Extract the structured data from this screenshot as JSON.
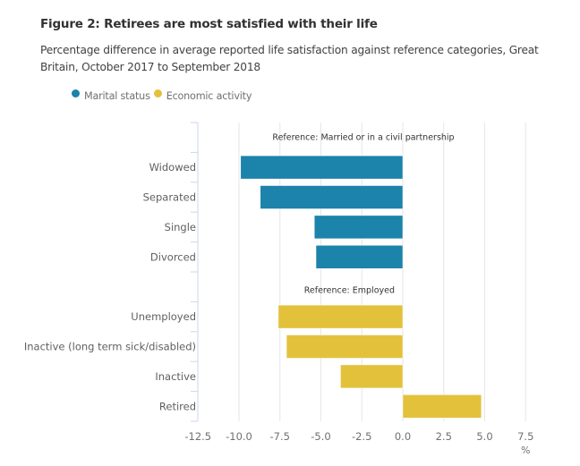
{
  "figure": {
    "title": "Figure 2: Retirees are most satisfied with their life",
    "subtitle": "Percentage difference in average reported life satisfaction against reference categories, Great Britain, October 2017 to September 2018"
  },
  "legend": [
    {
      "label": "Marital status",
      "color": "#1c83ab"
    },
    {
      "label": "Economic activity",
      "color": "#e3c13b"
    }
  ],
  "chart_data": {
    "type": "bar",
    "orientation": "horizontal",
    "title": "Figure 2: Retirees are most satisfied with their life",
    "subtitle": "Percentage difference in average reported life satisfaction against reference categories, Great Britain, October 2017 to September 2018",
    "xlabel": "%",
    "ylabel": "",
    "xlim": [
      -12.5,
      8.5
    ],
    "xticks": [
      -12.5,
      -10.0,
      -7.5,
      -5.0,
      -2.5,
      0.0,
      2.5,
      5.0,
      7.5
    ],
    "xtick_labels": [
      "-12.5",
      "-10.0",
      "-7.5",
      "-5.0",
      "-2.5",
      "0.0",
      "2.5",
      "5.0",
      "7.5"
    ],
    "grid": "vertical",
    "legend_position": "top-left",
    "categories": [
      "",
      "Widowed",
      "Separated",
      "Single",
      "Divorced",
      "",
      "Unemployed",
      "Inactive (long term sick/disabled)",
      "Inactive",
      "Retired"
    ],
    "series": [
      {
        "name": "Marital status",
        "color": "#1c83ab",
        "values": [
          null,
          -9.9,
          -8.7,
          -5.4,
          -5.3,
          null,
          null,
          null,
          null,
          null
        ]
      },
      {
        "name": "Economic activity",
        "color": "#e3c13b",
        "values": [
          null,
          null,
          null,
          null,
          null,
          null,
          -7.6,
          -7.1,
          -3.8,
          4.8
        ]
      }
    ],
    "annotations": [
      {
        "text": "Reference: Married or in a civil partnership",
        "category_index": 0
      },
      {
        "text": "Reference: Employed",
        "category_index": 5
      }
    ]
  }
}
